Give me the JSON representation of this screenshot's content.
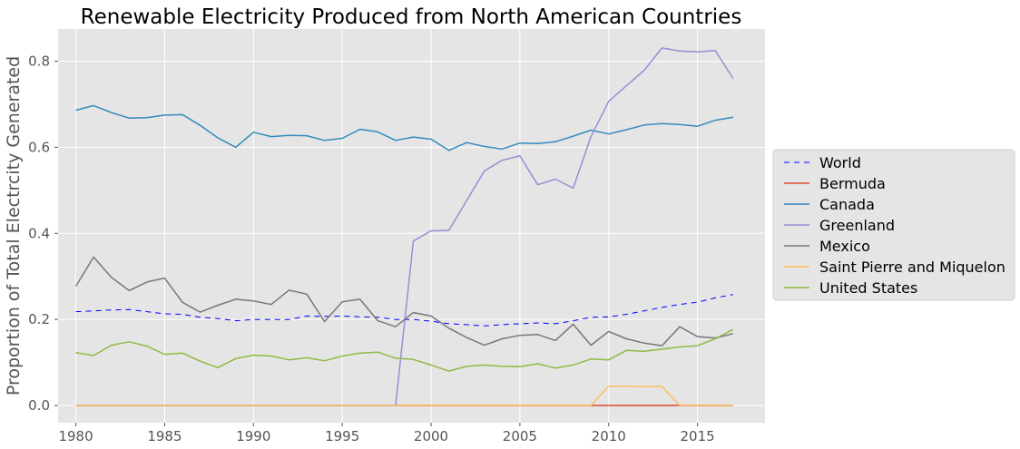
{
  "chart_data": {
    "type": "line",
    "title": "Renewable Electricity Produced from North American Countries",
    "xlabel": "",
    "ylabel": "Proportion of Total Electrcity Generated",
    "xlim": [
      1979,
      2018.8
    ],
    "ylim": [
      -0.04,
      0.875
    ],
    "xticks": [
      1980,
      1985,
      1990,
      1995,
      2000,
      2005,
      2010,
      2015
    ],
    "yticks": [
      0.0,
      0.2,
      0.4,
      0.6,
      0.8
    ],
    "grid": true,
    "legend_position": "right",
    "x": [
      1980,
      1981,
      1982,
      1983,
      1984,
      1985,
      1986,
      1987,
      1988,
      1989,
      1990,
      1991,
      1992,
      1993,
      1994,
      1995,
      1996,
      1997,
      1998,
      1999,
      2000,
      2001,
      2002,
      2003,
      2004,
      2005,
      2006,
      2007,
      2008,
      2009,
      2010,
      2011,
      2012,
      2013,
      2014,
      2015,
      2016,
      2017
    ],
    "series": [
      {
        "name": "World",
        "color": "#0000ff",
        "dash": true,
        "values": [
          0.218,
          0.22,
          0.222,
          0.223,
          0.218,
          0.213,
          0.212,
          0.205,
          0.202,
          0.197,
          0.2,
          0.2,
          0.2,
          0.208,
          0.207,
          0.208,
          0.206,
          0.205,
          0.2,
          0.2,
          0.196,
          0.19,
          0.188,
          0.185,
          0.188,
          0.19,
          0.192,
          0.19,
          0.197,
          0.205,
          0.206,
          0.212,
          0.22,
          0.228,
          0.235,
          0.24,
          0.25,
          0.258
        ]
      },
      {
        "name": "Bermuda",
        "color": "#e24a33",
        "dash": false,
        "values": [
          0,
          0,
          0,
          0,
          0,
          0,
          0,
          0,
          0,
          0,
          0,
          0,
          0,
          0,
          0,
          0,
          0,
          0,
          0,
          0,
          0,
          0,
          0,
          0,
          0,
          0,
          0,
          0,
          0,
          0,
          0,
          0,
          0,
          0,
          0,
          0,
          0,
          0
        ]
      },
      {
        "name": "Canada",
        "color": "#348abd",
        "dash": false,
        "values": [
          0.686,
          0.697,
          0.681,
          0.668,
          0.669,
          0.675,
          0.676,
          0.651,
          0.622,
          0.6,
          0.635,
          0.625,
          0.628,
          0.627,
          0.616,
          0.621,
          0.642,
          0.636,
          0.616,
          0.624,
          0.619,
          0.593,
          0.611,
          0.602,
          0.596,
          0.61,
          0.609,
          0.613,
          0.626,
          0.64,
          0.631,
          0.641,
          0.652,
          0.655,
          0.653,
          0.649,
          0.663,
          0.67
        ]
      },
      {
        "name": "Greenland",
        "color": "#988ed5",
        "dash": false,
        "values": [
          0,
          0,
          0,
          0,
          0,
          0,
          0,
          0,
          0,
          0,
          0,
          0,
          0,
          0,
          0,
          0,
          0,
          0,
          0,
          0.382,
          0.406,
          0.407,
          0.476,
          0.545,
          0.57,
          0.58,
          0.513,
          0.526,
          0.505,
          0.625,
          0.707,
          0.743,
          0.779,
          0.831,
          0.824,
          0.822,
          0.825,
          0.76
        ]
      },
      {
        "name": "Mexico",
        "color": "#777777",
        "dash": false,
        "values": [
          0.277,
          0.345,
          0.298,
          0.267,
          0.287,
          0.296,
          0.24,
          0.217,
          0.233,
          0.247,
          0.243,
          0.235,
          0.268,
          0.259,
          0.195,
          0.241,
          0.247,
          0.197,
          0.183,
          0.216,
          0.208,
          0.18,
          0.158,
          0.14,
          0.155,
          0.163,
          0.165,
          0.151,
          0.189,
          0.14,
          0.172,
          0.155,
          0.145,
          0.139,
          0.183,
          0.16,
          0.157,
          0.167
        ]
      },
      {
        "name": "Saint Pierre and Miquelon",
        "color": "#fbc15e",
        "dash": false,
        "values": [
          0,
          0,
          0,
          0,
          0,
          0,
          0,
          0,
          0,
          0,
          0,
          0,
          0,
          0,
          0,
          0,
          0,
          0,
          0,
          0,
          0,
          0,
          0,
          0,
          0,
          0,
          0,
          0,
          0,
          0,
          0.045,
          0.045,
          0.044,
          0.044,
          0,
          0,
          0,
          0
        ]
      },
      {
        "name": "United States",
        "color": "#8eba42",
        "dash": false,
        "values": [
          0.123,
          0.116,
          0.14,
          0.148,
          0.138,
          0.119,
          0.122,
          0.103,
          0.088,
          0.109,
          0.117,
          0.115,
          0.106,
          0.111,
          0.104,
          0.115,
          0.122,
          0.124,
          0.11,
          0.107,
          0.094,
          0.08,
          0.091,
          0.094,
          0.091,
          0.09,
          0.097,
          0.087,
          0.094,
          0.108,
          0.106,
          0.128,
          0.126,
          0.131,
          0.136,
          0.139,
          0.155,
          0.177
        ]
      }
    ]
  }
}
